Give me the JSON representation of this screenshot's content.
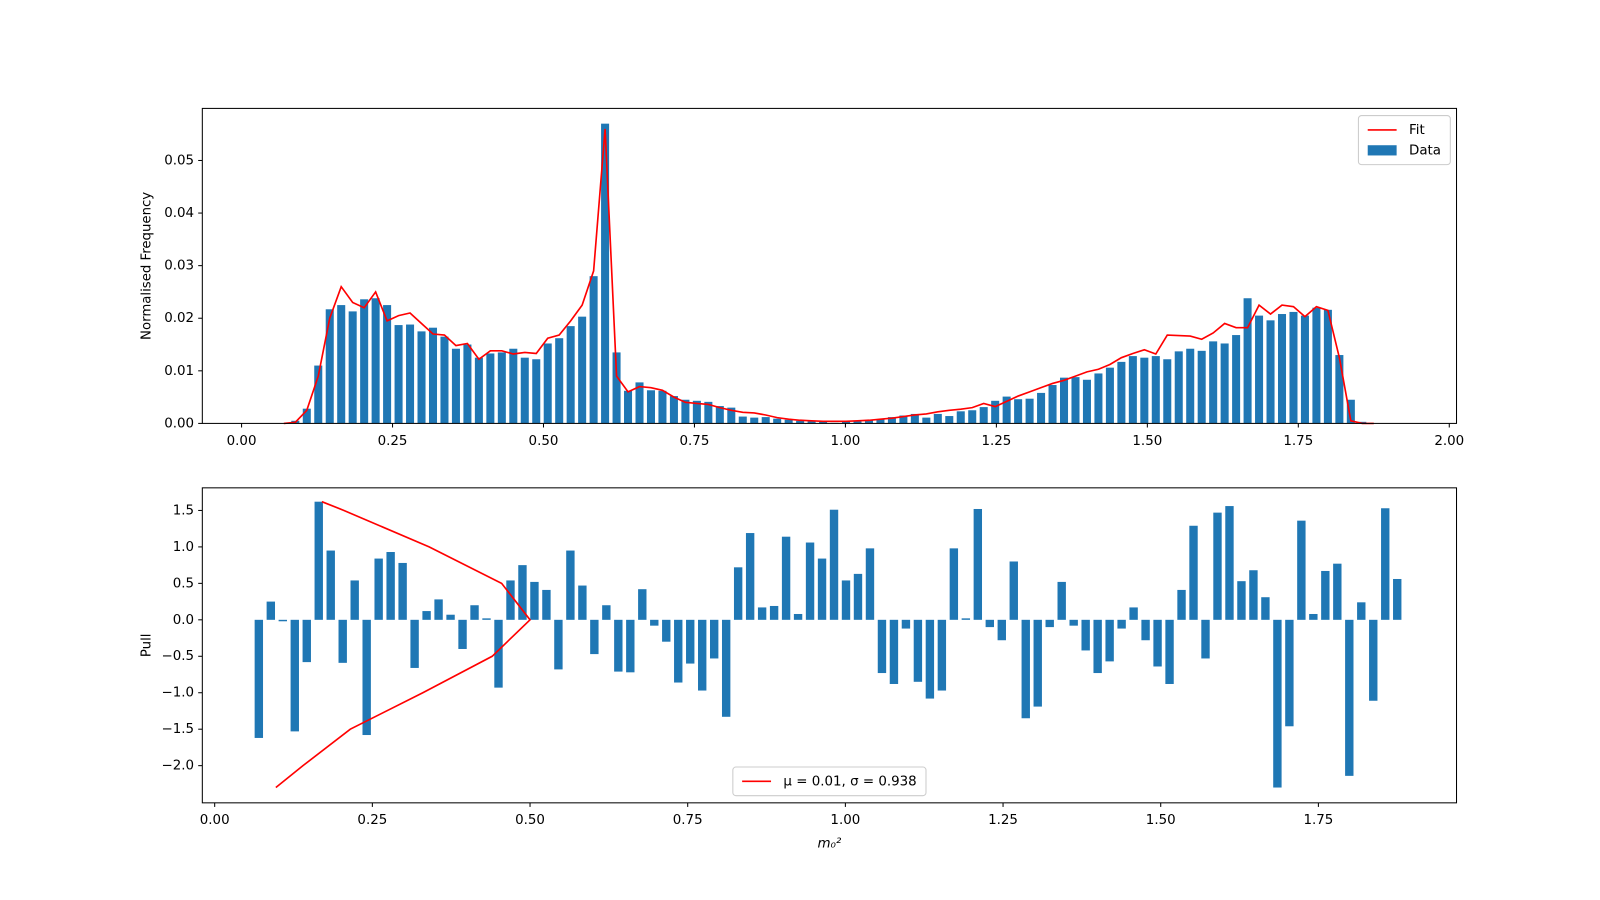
{
  "chart_data": [
    {
      "type": "bar",
      "ylabel": "Normalised Frequency",
      "x": [
        0.07,
        0.089,
        0.108,
        0.127,
        0.146,
        0.165,
        0.184,
        0.203,
        0.222,
        0.241,
        0.26,
        0.279,
        0.298,
        0.317,
        0.336,
        0.355,
        0.374,
        0.393,
        0.412,
        0.431,
        0.45,
        0.469,
        0.488,
        0.507,
        0.526,
        0.545,
        0.564,
        0.583,
        0.602,
        0.621,
        0.64,
        0.659,
        0.678,
        0.697,
        0.716,
        0.735,
        0.754,
        0.773,
        0.792,
        0.811,
        0.83,
        0.849,
        0.868,
        0.887,
        0.906,
        0.925,
        0.944,
        0.963,
        0.982,
        1.001,
        1.02,
        1.039,
        1.058,
        1.077,
        1.096,
        1.115,
        1.134,
        1.153,
        1.172,
        1.191,
        1.21,
        1.229,
        1.248,
        1.267,
        1.286,
        1.305,
        1.324,
        1.343,
        1.362,
        1.381,
        1.4,
        1.419,
        1.438,
        1.457,
        1.476,
        1.495,
        1.514,
        1.533,
        1.552,
        1.571,
        1.59,
        1.609,
        1.628,
        1.647,
        1.666,
        1.685,
        1.704,
        1.723,
        1.742,
        1.761,
        1.78,
        1.799,
        1.818,
        1.837,
        1.856,
        1.875
      ],
      "series": [
        {
          "name": "Fit",
          "type": "line",
          "color": "#ff0000",
          "values": [
            0,
            0.0002,
            0.0025,
            0.009,
            0.02,
            0.026,
            0.023,
            0.022,
            0.025,
            0.0195,
            0.0205,
            0.021,
            0.019,
            0.017,
            0.0168,
            0.0148,
            0.0152,
            0.0122,
            0.0138,
            0.0138,
            0.0132,
            0.0135,
            0.0133,
            0.0162,
            0.0168,
            0.0195,
            0.0225,
            0.029,
            0.056,
            0.009,
            0.006,
            0.007,
            0.0068,
            0.0063,
            0.005,
            0.004,
            0.0038,
            0.0036,
            0.003,
            0.0025,
            0.0021,
            0.002,
            0.0016,
            0.0011,
            0.0008,
            0.0006,
            0.0005,
            0.0004,
            0.0004,
            0.0004,
            0.0005,
            0.0006,
            0.0008,
            0.001,
            0.0013,
            0.0016,
            0.0018,
            0.0022,
            0.0025,
            0.0027,
            0.003,
            0.0038,
            0.0032,
            0.0042,
            0.0052,
            0.006,
            0.0068,
            0.0076,
            0.0082,
            0.009,
            0.0098,
            0.0103,
            0.0112,
            0.0125,
            0.0133,
            0.014,
            0.0132,
            0.0168,
            0.0167,
            0.0166,
            0.016,
            0.0172,
            0.019,
            0.0182,
            0.0182,
            0.0225,
            0.0208,
            0.0225,
            0.0222,
            0.0203,
            0.0222,
            0.0215,
            0.0125,
            0.0005,
            0,
            0
          ]
        },
        {
          "name": "Data",
          "type": "bar",
          "color": "#1f77b4",
          "values": [
            0,
            0.0005,
            0.0028,
            0.011,
            0.0217,
            0.0225,
            0.0213,
            0.0236,
            0.0238,
            0.0225,
            0.0187,
            0.0188,
            0.0175,
            0.0182,
            0.0165,
            0.0142,
            0.015,
            0.0125,
            0.0133,
            0.0135,
            0.0142,
            0.0125,
            0.0122,
            0.0152,
            0.0162,
            0.0185,
            0.0203,
            0.028,
            0.057,
            0.0135,
            0.0062,
            0.0078,
            0.0063,
            0.0062,
            0.0052,
            0.0045,
            0.0043,
            0.0041,
            0.0033,
            0.003,
            0.0013,
            0.0011,
            0.0012,
            0.0009,
            0.0007,
            0.0005,
            0.0004,
            0.0003,
            0.0001,
            0.0003,
            0.0004,
            0.0006,
            0.0008,
            0.0012,
            0.0015,
            0.0018,
            0.0011,
            0.0018,
            0.0014,
            0.0023,
            0.0025,
            0.0031,
            0.0043,
            0.0051,
            0.0046,
            0.0047,
            0.0058,
            0.0073,
            0.0087,
            0.0088,
            0.0083,
            0.0095,
            0.0106,
            0.0117,
            0.0128,
            0.0125,
            0.0128,
            0.0122,
            0.0137,
            0.0142,
            0.0138,
            0.0156,
            0.0152,
            0.0168,
            0.0238,
            0.0205,
            0.0196,
            0.0208,
            0.0212,
            0.0205,
            0.022,
            0.0216,
            0.013,
            0.0045,
            0.0003,
            0
          ]
        }
      ],
      "xlim": [
        -0.065,
        2.012
      ],
      "ylim": [
        0,
        0.0599
      ],
      "xticks": [
        {
          "value": 0,
          "label": "0.00"
        },
        0.25,
        {
          "value": 0.5,
          "label": "0.50"
        },
        0.75,
        {
          "value": 1,
          "label": "1.00"
        },
        1.25,
        {
          "value": 1.5,
          "label": "1.50"
        },
        1.75,
        {
          "value": 2,
          "label": "2.00"
        }
      ],
      "yticks": [
        {
          "value": 0,
          "label": "0.00"
        },
        0.01,
        0.02,
        0.03,
        0.04,
        0.05
      ],
      "legend": "upper right"
    },
    {
      "type": "bar",
      "xlabel": "m₀²",
      "ylabel": "Pull",
      "x": [
        0.07,
        0.089,
        0.108,
        0.127,
        0.146,
        0.165,
        0.184,
        0.203,
        0.222,
        0.241,
        0.26,
        0.279,
        0.298,
        0.317,
        0.336,
        0.355,
        0.374,
        0.393,
        0.412,
        0.431,
        0.45,
        0.469,
        0.488,
        0.507,
        0.526,
        0.545,
        0.564,
        0.583,
        0.602,
        0.621,
        0.64,
        0.659,
        0.678,
        0.697,
        0.716,
        0.735,
        0.754,
        0.773,
        0.792,
        0.811,
        0.83,
        0.849,
        0.868,
        0.887,
        0.906,
        0.925,
        0.944,
        0.963,
        0.982,
        1.001,
        1.02,
        1.039,
        1.058,
        1.077,
        1.096,
        1.115,
        1.134,
        1.153,
        1.172,
        1.191,
        1.21,
        1.229,
        1.248,
        1.267,
        1.286,
        1.305,
        1.324,
        1.343,
        1.362,
        1.381,
        1.4,
        1.419,
        1.438,
        1.457,
        1.476,
        1.495,
        1.514,
        1.533,
        1.552,
        1.571,
        1.59,
        1.609,
        1.628,
        1.647,
        1.666,
        1.685,
        1.704,
        1.723,
        1.742,
        1.761,
        1.78,
        1.799,
        1.818,
        1.837,
        1.856,
        1.875
      ],
      "series": [
        {
          "type": "bar",
          "color": "#1f77b4",
          "values": [
            -1.62,
            0.25,
            -0.02,
            -1.53,
            -0.58,
            1.62,
            0.95,
            -0.59,
            0.54,
            -1.58,
            0.84,
            0.93,
            0.78,
            -0.66,
            0.12,
            0.28,
            0.07,
            -0.4,
            0.2,
            0.02,
            -0.93,
            0.54,
            0.75,
            0.52,
            0.41,
            -0.68,
            0.95,
            0.47,
            -0.47,
            0.2,
            -0.71,
            -0.72,
            0.42,
            -0.08,
            -0.3,
            -0.86,
            -0.6,
            -0.97,
            -0.53,
            -1.33,
            0.72,
            1.19,
            0.17,
            0.19,
            1.14,
            0.08,
            1.06,
            0.84,
            1.51,
            0.54,
            0.63,
            0.98,
            -0.73,
            -0.88,
            -0.12,
            -0.85,
            -1.08,
            -0.97,
            0.98,
            0.02,
            1.52,
            -0.1,
            -0.28,
            0.8,
            -1.35,
            -1.19,
            -0.1,
            0.52,
            -0.08,
            -0.42,
            -0.73,
            -0.57,
            -0.12,
            0.17,
            -0.28,
            -0.64,
            -0.88,
            0.41,
            1.29,
            -0.53,
            1.47,
            1.56,
            0.53,
            0.68,
            0.31,
            -2.3,
            -1.46,
            1.36,
            0.08,
            0.67,
            0.77,
            -2.14,
            0.24,
            -1.11,
            1.53,
            0.56
          ]
        },
        {
          "name": "μ = 0.01, σ = 0.938",
          "type": "line",
          "color": "#ff0000",
          "x": [
            0.097,
            0.14,
            0.215,
            0.33,
            0.44,
            0.5,
            0.455,
            0.34,
            0.205,
            0.17
          ],
          "values": [
            -2.3,
            -2.0,
            -1.5,
            -1.0,
            -0.5,
            0,
            0.5,
            1.0,
            1.5,
            1.62
          ]
        }
      ],
      "xlim": [
        -0.0196,
        1.969
      ],
      "ylim": [
        -2.51,
        1.81
      ],
      "xticks": [
        {
          "value": 0,
          "label": "0.00"
        },
        0.25,
        {
          "value": 0.5,
          "label": "0.50"
        },
        0.75,
        {
          "value": 1,
          "label": "1.00"
        },
        1.25,
        {
          "value": 1.5,
          "label": "1.50"
        },
        1.75
      ],
      "yticks": [
        {
          "value": -2,
          "label": "−2.0"
        },
        {
          "value": -1.5,
          "label": "−1.5"
        },
        {
          "value": -1,
          "label": "−1.0"
        },
        {
          "value": -0.5,
          "label": "−0.5"
        },
        {
          "value": 0,
          "label": "0.0"
        },
        0.5,
        {
          "value": 1,
          "label": "1.0"
        },
        1.5
      ],
      "legend": "lower center"
    }
  ]
}
